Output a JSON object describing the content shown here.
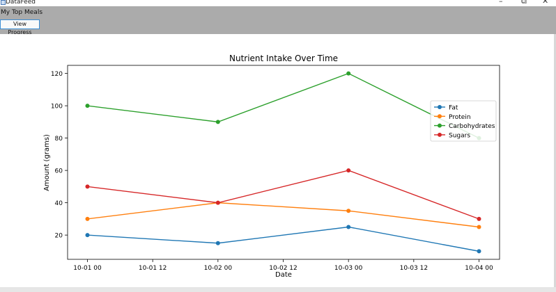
{
  "window": {
    "title": "DataFeed",
    "minimize": "–",
    "maximize": "⧉",
    "close": "✕"
  },
  "toolbar": {
    "menu_label": "My Top Meals",
    "view_progress_label": "View Progress"
  },
  "icons": {
    "app": "app-window-icon"
  },
  "chart_data": {
    "type": "line",
    "title": "Nutrient Intake Over Time",
    "xlabel": "Date",
    "ylabel": "Amount (grams)",
    "x": [
      0,
      1,
      2,
      3
    ],
    "x_ticks": [
      0,
      0.5,
      1,
      1.5,
      2,
      2.5,
      3
    ],
    "x_tick_labels": [
      "10-01 00",
      "10-01 12",
      "10-02 00",
      "10-02 12",
      "10-03 00",
      "10-03 12",
      "10-04 00"
    ],
    "ylim": [
      5,
      125
    ],
    "y_ticks": [
      20,
      40,
      60,
      80,
      100,
      120
    ],
    "grid": false,
    "legend": "top-right",
    "series": [
      {
        "name": "Fat",
        "color": "#1f77b4",
        "values": [
          20,
          15,
          25,
          10
        ]
      },
      {
        "name": "Protein",
        "color": "#ff7f0e",
        "values": [
          30,
          40,
          35,
          25
        ]
      },
      {
        "name": "Carbohydrates",
        "color": "#2ca02c",
        "values": [
          100,
          90,
          120,
          80
        ]
      },
      {
        "name": "Sugars",
        "color": "#d62728",
        "values": [
          50,
          40,
          60,
          30
        ]
      }
    ]
  }
}
